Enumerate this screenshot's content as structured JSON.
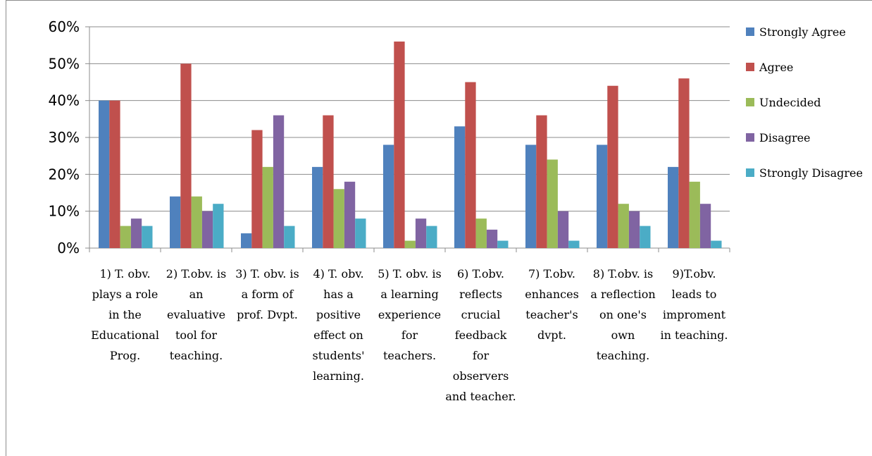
{
  "chart_data": {
    "type": "bar",
    "title": "",
    "xlabel": "",
    "ylabel": "",
    "ylim": [
      0,
      60
    ],
    "yticks": [
      "0%",
      "10%",
      "20%",
      "30%",
      "40%",
      "50%",
      "60%"
    ],
    "grid": true,
    "legend_position": "right",
    "categories": [
      [
        "1) T. obv.",
        "plays a role",
        "in the",
        "Educational",
        "Prog."
      ],
      [
        "2) T.obv. is",
        "an",
        "evaluative",
        "tool for",
        "teaching."
      ],
      [
        "3) T. obv. is",
        "a form of",
        "prof. Dvpt."
      ],
      [
        "4) T. obv.",
        "has a",
        "positive",
        "effect on",
        "students'",
        "learning."
      ],
      [
        "5) T. obv. is",
        "a  learning",
        "experience",
        "for",
        "teachers."
      ],
      [
        "6) T.obv.",
        "reflects",
        "crucial",
        "feedback",
        "for",
        "observers",
        "and teacher."
      ],
      [
        "7) T.obv.",
        "enhances",
        "teacher's",
        "dvpt."
      ],
      [
        "8) T.obv. is",
        "a reflection",
        "on one's",
        "own",
        "teaching."
      ],
      [
        "9)T.obv.",
        "leads to",
        "improment",
        "in teaching."
      ]
    ],
    "series": [
      {
        "name": "Strongly Agree",
        "color": "#4F81BD",
        "values": [
          40,
          14,
          4,
          22,
          28,
          33,
          28,
          28,
          22
        ]
      },
      {
        "name": "Agree",
        "color": "#C0504D",
        "values": [
          40,
          50,
          32,
          36,
          56,
          45,
          36,
          44,
          46
        ]
      },
      {
        "name": "Undecided",
        "color": "#9BBB59",
        "values": [
          6,
          14,
          22,
          16,
          2,
          8,
          24,
          12,
          18
        ]
      },
      {
        "name": "Disagree",
        "color": "#8064A2",
        "values": [
          8,
          10,
          36,
          18,
          8,
          5,
          10,
          10,
          12
        ]
      },
      {
        "name": "Strongly Disagree",
        "color": "#4BACC6",
        "values": [
          6,
          12,
          6,
          8,
          6,
          2,
          2,
          6,
          2
        ]
      }
    ]
  }
}
